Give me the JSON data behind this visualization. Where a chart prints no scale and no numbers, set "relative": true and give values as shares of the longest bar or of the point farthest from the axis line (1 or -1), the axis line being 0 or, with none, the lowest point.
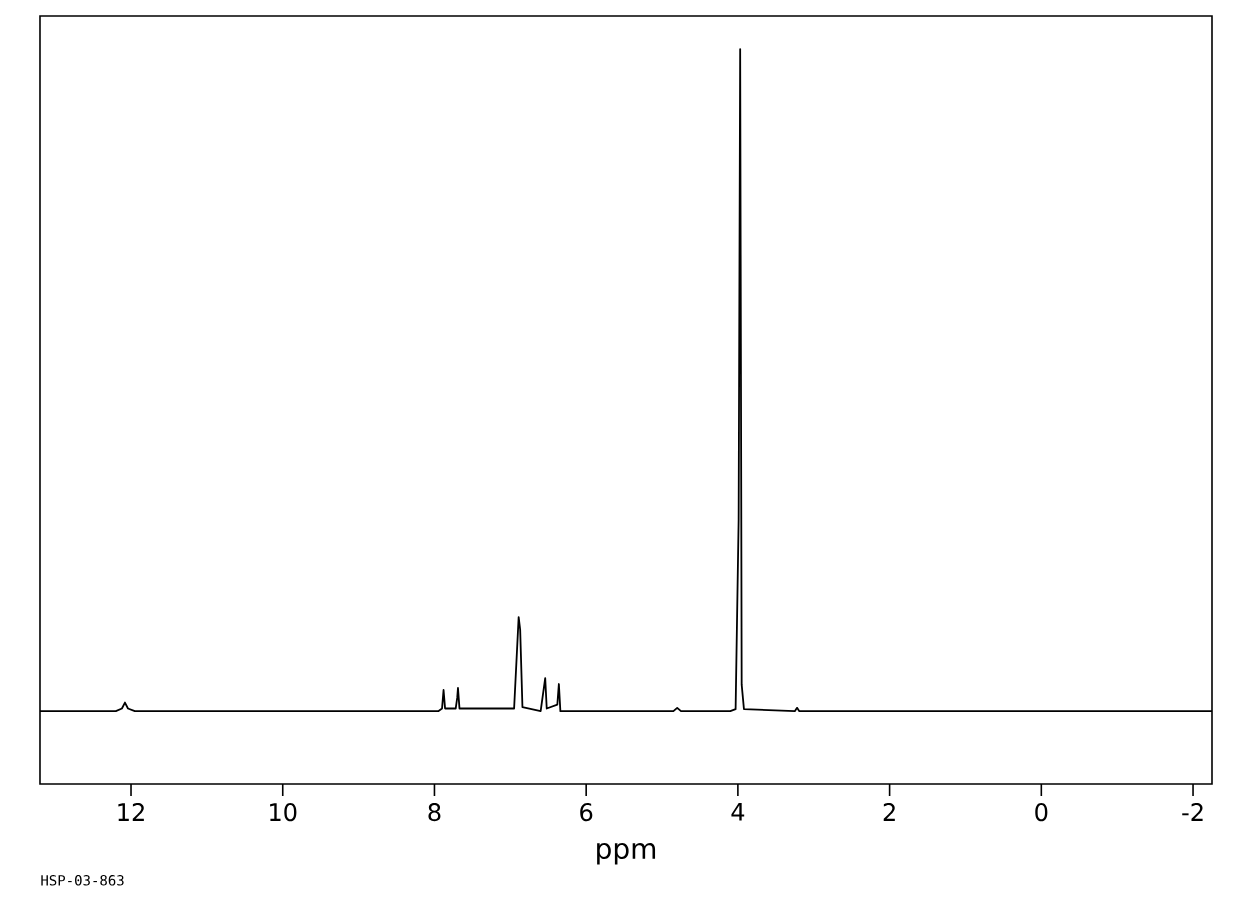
{
  "chart_data": {
    "type": "line",
    "relative": true,
    "xlabel": "ppm",
    "annotations": [
      "HSP-03-863"
    ],
    "xlim": [
      13.2,
      -2.25
    ],
    "xticks": [
      12,
      10,
      8,
      6,
      4,
      2,
      0,
      -2
    ],
    "x": [
      13.2,
      12.2,
      12.12,
      12.08,
      12.04,
      11.95,
      7.95,
      7.9,
      7.88,
      7.86,
      7.72,
      7.7,
      7.69,
      7.67,
      6.95,
      6.89,
      6.87,
      6.84,
      6.6,
      6.54,
      6.52,
      6.38,
      6.36,
      6.34,
      4.85,
      4.8,
      4.75,
      4.1,
      4.03,
      3.99,
      3.97,
      3.95,
      3.92,
      3.25,
      3.22,
      3.19,
      -2.25
    ],
    "series": [
      {
        "color": "#000000",
        "values": [
          0,
          0,
          0.004,
          0.013,
          0.004,
          0,
          0,
          0.004,
          0.032,
          0.004,
          0.004,
          0.02,
          0.035,
          0.004,
          0.004,
          0.142,
          0.123,
          0.006,
          0,
          0.05,
          0.004,
          0.01,
          0.041,
          0,
          0,
          0.005,
          0,
          0,
          0.003,
          0.29,
          1,
          0.04,
          0.003,
          0,
          0.005,
          0,
          0
        ]
      }
    ],
    "marker": "none",
    "line_style": "solid"
  }
}
